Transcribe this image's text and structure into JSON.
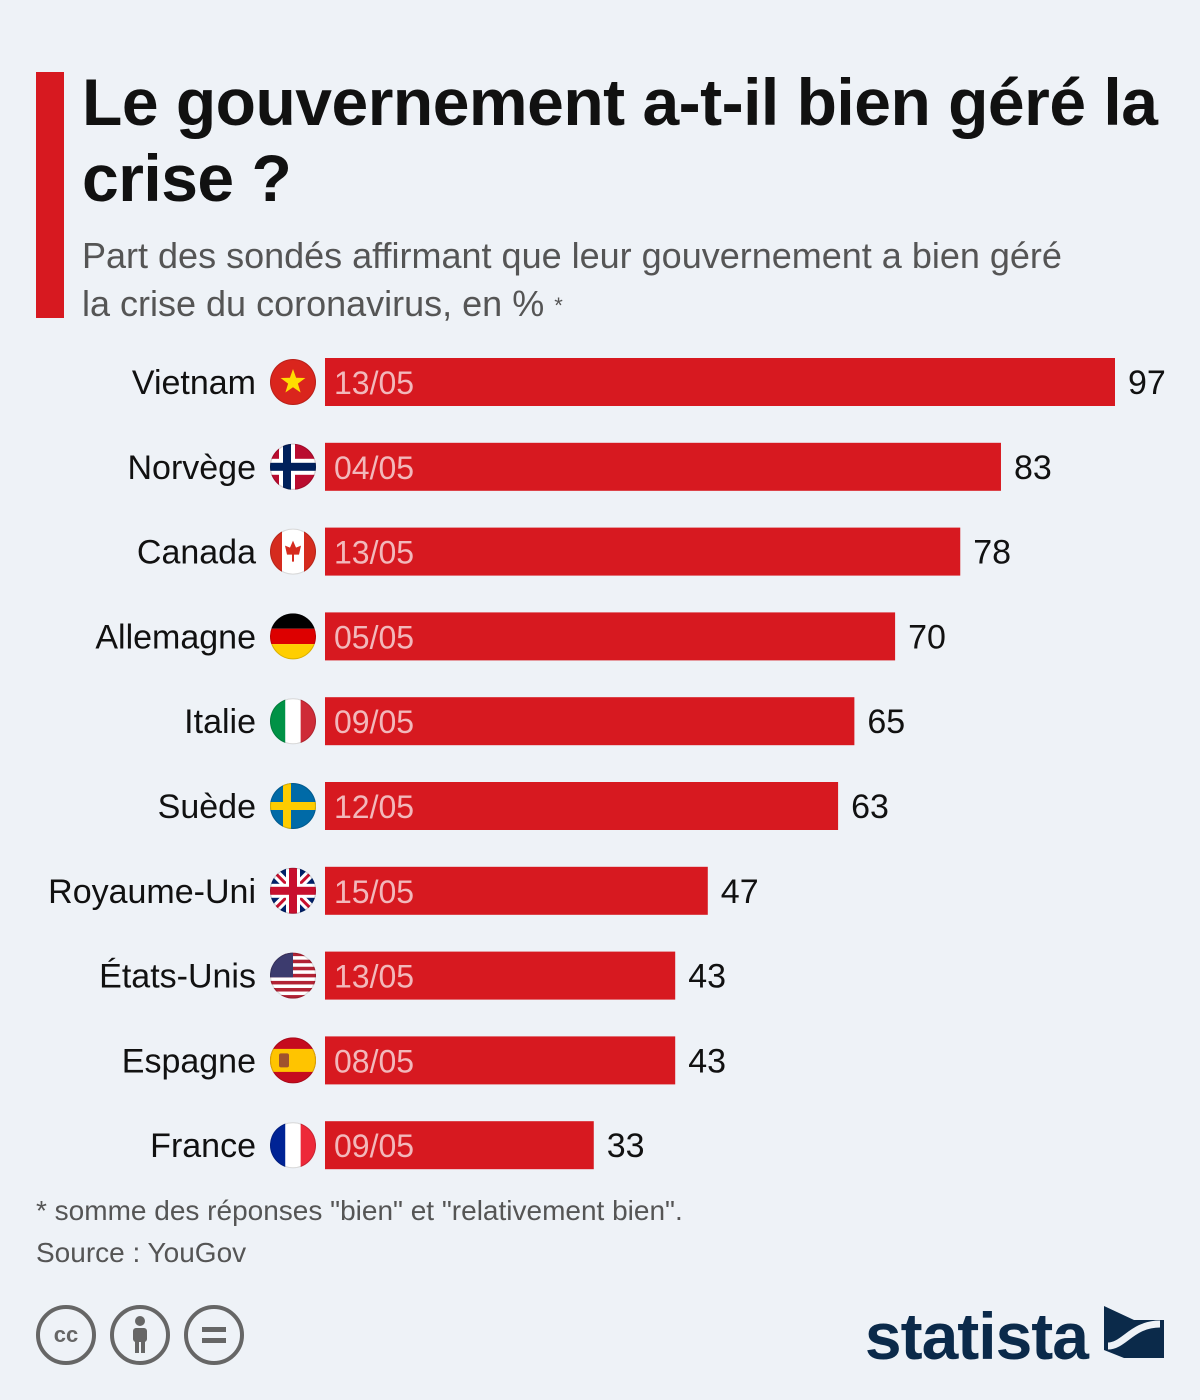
{
  "title": "Le gouvernement a-t-il bien géré la crise ?",
  "subtitle": "Part des sondés affirmant que leur gouvernement a bien géré la crise du coronavirus, en %",
  "subtitle_mark": "*",
  "footnote": "* somme des réponses \"bien\" et \"relativement bien\".",
  "source": "Source : YouGov",
  "brand": "statista",
  "colors": {
    "bar": "#d71920",
    "date_text": "#f2b8bb",
    "accent": "#d71920",
    "logo": "#0b2a4a",
    "background": "#eef2f7"
  },
  "license_icons": [
    "cc-icon",
    "by-icon",
    "nd-icon"
  ],
  "chart_data": {
    "type": "bar",
    "orientation": "horizontal",
    "title": "Le gouvernement a-t-il bien géré la crise ?",
    "categories": [
      "Vietnam",
      "Norvège",
      "Canada",
      "Allemagne",
      "Italie",
      "Suède",
      "Royaume-Uni",
      "États-Unis",
      "Espagne",
      "France"
    ],
    "values": [
      97,
      83,
      78,
      70,
      65,
      63,
      47,
      43,
      43,
      33
    ],
    "dates": [
      "13/05",
      "04/05",
      "13/05",
      "05/05",
      "09/05",
      "12/05",
      "15/05",
      "13/05",
      "08/05",
      "09/05"
    ],
    "flags": [
      "vietnam-flag-icon",
      "norway-flag-icon",
      "canada-flag-icon",
      "germany-flag-icon",
      "italy-flag-icon",
      "sweden-flag-icon",
      "uk-flag-icon",
      "usa-flag-icon",
      "spain-flag-icon",
      "france-flag-icon"
    ],
    "xlim": [
      0,
      100
    ],
    "grid": false,
    "legend": "none"
  }
}
